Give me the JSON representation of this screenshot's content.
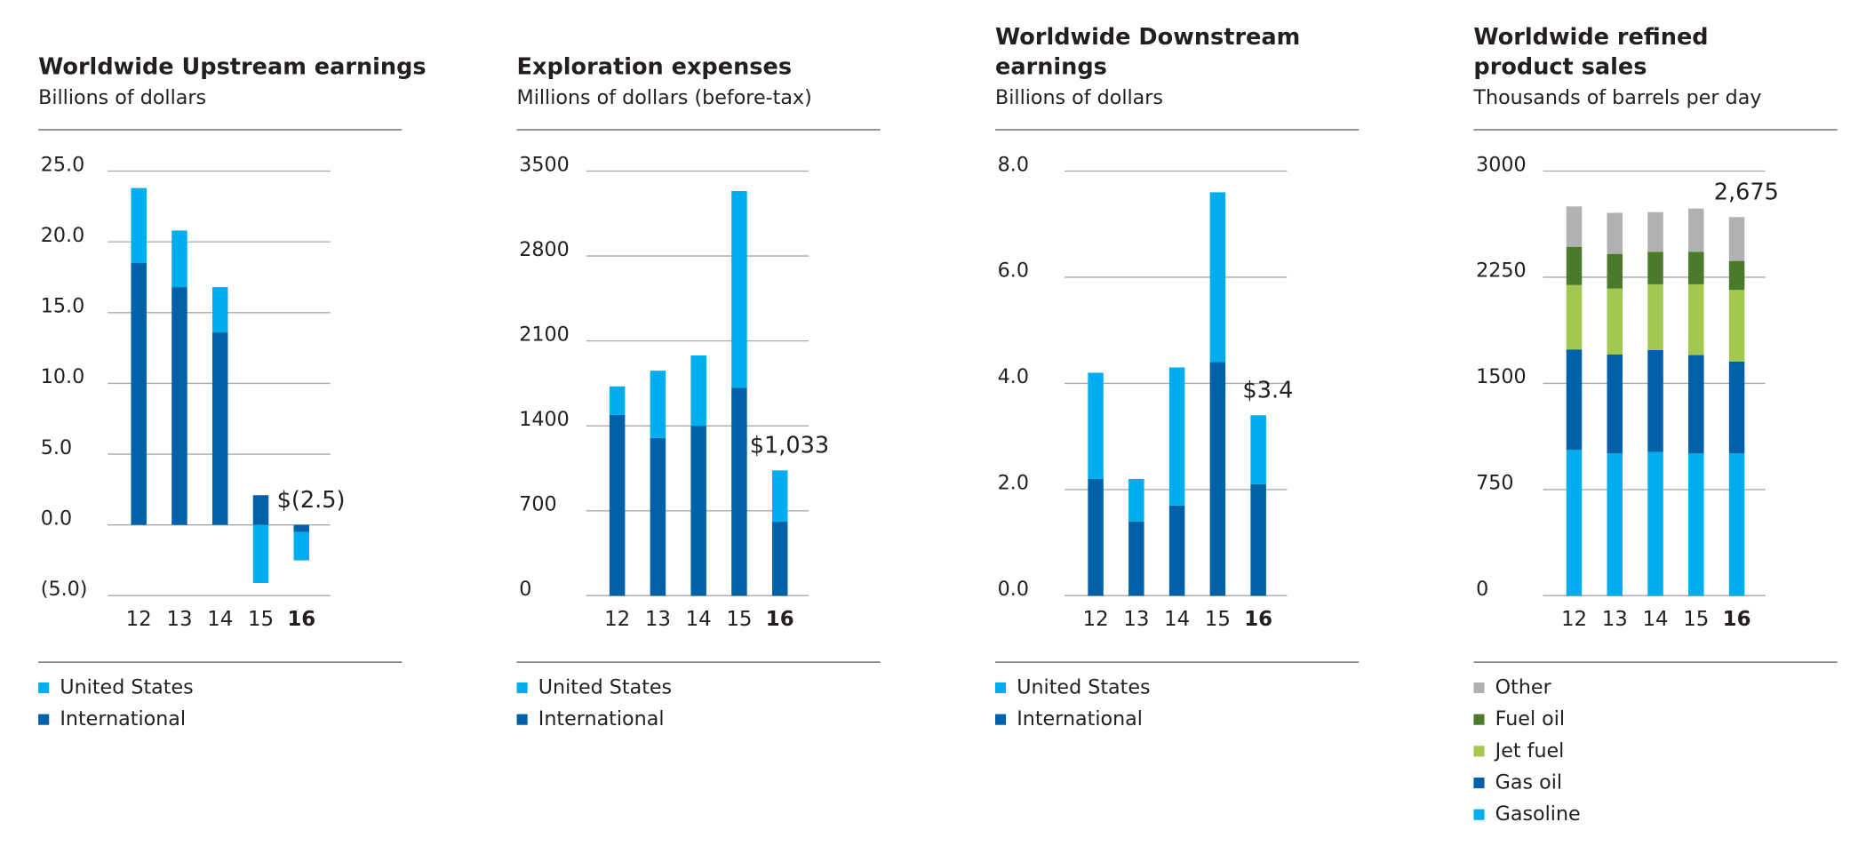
{
  "chart_data": [
    {
      "type": "bar",
      "title": [
        "Worldwide Upstream earnings"
      ],
      "subtitle": "Billions of dollars",
      "categories": [
        "12",
        "13",
        "14",
        "15",
        "16"
      ],
      "series": [
        {
          "name": "United States",
          "color": "#00adee",
          "values": [
            5.3,
            4.0,
            3.2,
            -4.1,
            -2.0
          ]
        },
        {
          "name": "International",
          "color": "#0061a8",
          "values": [
            18.5,
            16.8,
            13.6,
            2.1,
            -0.5
          ]
        }
      ],
      "ylim": [
        -5,
        25
      ],
      "yticks": [
        {
          "value": 25,
          "label": "25.0"
        },
        {
          "value": 20,
          "label": "20.0"
        },
        {
          "value": 15,
          "label": "15.0"
        },
        {
          "value": 10,
          "label": "10.0"
        },
        {
          "value": 5,
          "label": "5.0"
        },
        {
          "value": 0,
          "label": "0.0"
        },
        {
          "value": -5,
          "label": "(5.0)"
        }
      ],
      "total_label": {
        "category": "16",
        "value": -2.5,
        "label": "$(2.5)"
      }
    },
    {
      "type": "bar",
      "title": [
        "Exploration expenses"
      ],
      "subtitle": "Millions of dollars (before-tax)",
      "categories": [
        "12",
        "13",
        "14",
        "15",
        "16"
      ],
      "series": [
        {
          "name": "United States",
          "color": "#00adee",
          "values": [
            235,
            555,
            580,
            1620,
            423
          ]
        },
        {
          "name": "International",
          "color": "#0061a8",
          "values": [
            1490,
            1300,
            1400,
            1715,
            610
          ]
        }
      ],
      "ylim": [
        0,
        3500
      ],
      "yticks": [
        3500,
        2800,
        2100,
        1400,
        700,
        0
      ],
      "total_label": {
        "category": "16",
        "value": 1033,
        "label": "$1,033"
      }
    },
    {
      "type": "bar",
      "title": [
        "Worldwide Downstream",
        "earnings"
      ],
      "subtitle": "Billions of dollars",
      "categories": [
        "12",
        "13",
        "14",
        "15",
        "16"
      ],
      "series": [
        {
          "name": "United States",
          "color": "#00adee",
          "values": [
            2.0,
            0.8,
            2.6,
            3.2,
            1.3
          ]
        },
        {
          "name": "International",
          "color": "#0061a8",
          "values": [
            2.2,
            1.4,
            1.7,
            4.4,
            2.1
          ]
        }
      ],
      "ylim": [
        0,
        8
      ],
      "yticks": [
        {
          "value": 8,
          "label": "8.0"
        },
        {
          "value": 6,
          "label": "6.0"
        },
        {
          "value": 4,
          "label": "4.0"
        },
        {
          "value": 2,
          "label": "2.0"
        },
        {
          "value": 0,
          "label": "0.0"
        }
      ],
      "total_label": {
        "category": "16",
        "value": 3.4,
        "label": "$3.4"
      }
    },
    {
      "type": "bar",
      "title": [
        "Worldwide refined",
        "product sales"
      ],
      "subtitle": "Thousands of barrels per day",
      "categories": [
        "12",
        "13",
        "14",
        "15",
        "16"
      ],
      "series": [
        {
          "name": "Other",
          "color": "#b0b1b3",
          "values": [
            285,
            290,
            280,
            305,
            310
          ]
        },
        {
          "name": "Fuel oil",
          "color": "#4b7a2c",
          "values": [
            270,
            245,
            230,
            230,
            205
          ]
        },
        {
          "name": "Jet fuel",
          "color": "#a3c850",
          "values": [
            455,
            465,
            465,
            500,
            505
          ]
        },
        {
          "name": "Gas oil",
          "color": "#0061a8",
          "values": [
            710,
            700,
            720,
            695,
            650
          ]
        },
        {
          "name": "Gasoline",
          "color": "#00adee",
          "values": [
            1030,
            1005,
            1015,
            1005,
            1005
          ]
        }
      ],
      "ylim": [
        0,
        3000
      ],
      "yticks": [
        3000,
        2250,
        1500,
        750,
        0
      ],
      "total_label": {
        "category": "16",
        "value": 2675,
        "label": "2,675"
      }
    }
  ]
}
